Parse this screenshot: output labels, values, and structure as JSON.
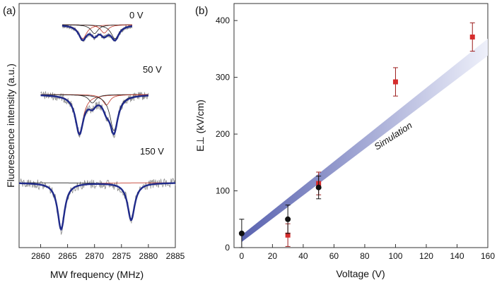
{
  "panel_a": {
    "panel_label": "(a)",
    "ylabel": "Fluorescence intensity (a.u.)",
    "xlabel": "MW frequency (MHz)",
    "voltage_labels": [
      "0 V",
      "50 V",
      "150 V"
    ]
  },
  "panel_b": {
    "panel_label": "(b)",
    "ylabel": "E⊥ (kV/cm)",
    "xlabel": "Voltage (V)",
    "band_label": "Simulation"
  },
  "colors": {
    "raw_trace": "#8c8c8c",
    "fit_curve": "#1f2a8a",
    "component_red": "#c0392b",
    "component_black": "#222222",
    "band_dark": "#5a63b0",
    "band_light": "#eef0fa",
    "square_marker": "#d62c2c",
    "circle_marker": "#111111",
    "error_bar": "#9b1c1c"
  },
  "chart_data": [
    {
      "type": "line",
      "title": "",
      "xlabel": "MW frequency (MHz)",
      "ylabel": "Fluorescence intensity (a.u.)",
      "xlim": [
        2856,
        2885
      ],
      "xticks": [
        2860,
        2865,
        2870,
        2875,
        2880,
        2885
      ],
      "series": [
        {
          "name": "0 V",
          "x_range": [
            2864,
            2877
          ],
          "dips": [
            {
              "center": 2867.8,
              "depth": 0.55,
              "width": 0.9
            },
            {
              "center": 2870.0,
              "depth": 0.35,
              "width": 0.8
            },
            {
              "center": 2871.8,
              "depth": 0.33,
              "width": 0.8
            },
            {
              "center": 2873.8,
              "depth": 0.55,
              "width": 0.9
            }
          ]
        },
        {
          "name": "50 V",
          "x_range": [
            2860,
            2880
          ],
          "dips": [
            {
              "center": 2867.2,
              "depth": 0.9,
              "width": 0.9
            },
            {
              "center": 2869.6,
              "depth": 0.2,
              "width": 0.8
            },
            {
              "center": 2872.2,
              "depth": 0.25,
              "width": 0.8
            },
            {
              "center": 2873.6,
              "depth": 0.85,
              "width": 0.9
            }
          ]
        },
        {
          "name": "150 V",
          "x_range": [
            2856,
            2885
          ],
          "dips": [
            {
              "center": 2863.8,
              "depth": 1.0,
              "width": 0.8
            },
            {
              "center": 2876.8,
              "depth": 0.8,
              "width": 0.8
            }
          ]
        }
      ]
    },
    {
      "type": "scatter",
      "title": "",
      "xlabel": "Voltage (V)",
      "ylabel": "E⊥ (kV/cm)",
      "xlim": [
        -5,
        160
      ],
      "ylim": [
        0,
        430
      ],
      "xticks": [
        0,
        20,
        40,
        60,
        80,
        100,
        120,
        140,
        160
      ],
      "yticks": [
        0,
        100,
        200,
        300,
        400
      ],
      "band": {
        "name": "Simulation",
        "x": [
          0,
          160
        ],
        "lower": [
          10,
          338
        ],
        "upper": [
          22,
          368
        ]
      },
      "series": [
        {
          "marker": "square",
          "x": [
            30,
            50,
            100,
            150
          ],
          "y": [
            22,
            113,
            292,
            371
          ],
          "yerr": [
            20,
            20,
            25,
            25
          ]
        },
        {
          "marker": "circle",
          "x": [
            0,
            30,
            50
          ],
          "y": [
            25,
            50,
            106
          ],
          "yerr": [
            25,
            25,
            20
          ]
        }
      ]
    }
  ]
}
